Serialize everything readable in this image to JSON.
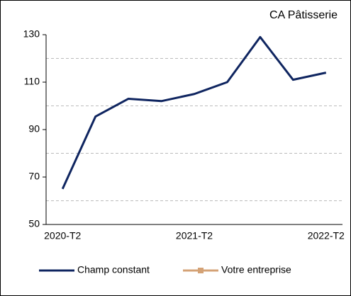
{
  "chart_data": {
    "type": "line",
    "title": "CA Pâtisserie",
    "categories": [
      "2020-T2",
      null,
      null,
      null,
      "2021-T2",
      null,
      null,
      null,
      "2022-T2"
    ],
    "series": [
      {
        "name": "Champ constant",
        "color": "#0f2560",
        "values": [
          65,
          95.5,
          103,
          102,
          105,
          110,
          129,
          111,
          114
        ]
      },
      {
        "name": "Votre entreprise",
        "color": "#d4a276",
        "values": [
          null,
          null,
          null,
          null,
          null,
          null,
          null,
          null,
          null
        ]
      }
    ],
    "ylim": [
      50,
      130
    ],
    "yticks": [
      50,
      70,
      90,
      110,
      130
    ],
    "minor_yticks": [
      60,
      80,
      100,
      120
    ],
    "grid": true,
    "legend": "bottom"
  }
}
